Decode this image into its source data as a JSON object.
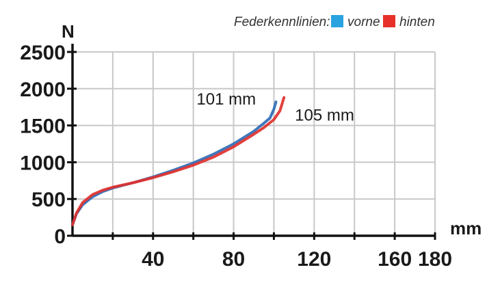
{
  "chart_data": {
    "type": "line",
    "title": "",
    "legend_title": "Federkennlinien:",
    "legend_position": "top-right",
    "xlabel": "mm",
    "ylabel": "N",
    "xlim": [
      0,
      180
    ],
    "ylim": [
      0,
      2500
    ],
    "grid": true,
    "x_ticks": [
      0,
      20,
      40,
      60,
      80,
      100,
      120,
      140,
      160,
      180
    ],
    "x_tick_labels": [
      "40",
      "80",
      "120",
      "160",
      "180"
    ],
    "x_tick_label_values": [
      40,
      80,
      120,
      160,
      180
    ],
    "y_ticks": [
      0,
      500,
      1000,
      1500,
      2000,
      2500
    ],
    "y_tick_labels": [
      "0",
      "500",
      "1000",
      "1500",
      "2000",
      "2500"
    ],
    "series": [
      {
        "name": "vorne",
        "color": "#2f6db5",
        "legend_color": "#29a3e0",
        "x": [
          0,
          2,
          5,
          10,
          15,
          20,
          30,
          40,
          50,
          60,
          70,
          80,
          90,
          95,
          98,
          100,
          101
        ],
        "y": [
          150,
          300,
          420,
          530,
          600,
          650,
          720,
          800,
          890,
          990,
          1110,
          1250,
          1420,
          1530,
          1600,
          1720,
          1820
        ]
      },
      {
        "name": "hinten",
        "color": "#e0302d",
        "legend_color": "#e8302a",
        "x": [
          0,
          2,
          5,
          10,
          15,
          20,
          30,
          40,
          50,
          60,
          70,
          80,
          90,
          95,
          100,
          103,
          105
        ],
        "y": [
          150,
          310,
          450,
          560,
          620,
          660,
          720,
          790,
          870,
          960,
          1070,
          1210,
          1380,
          1470,
          1580,
          1700,
          1880
        ]
      }
    ],
    "annotations": [
      {
        "text": "101 mm",
        "x": 101,
        "y": 1820
      },
      {
        "text": "105 mm",
        "x": 105,
        "y": 1880
      }
    ]
  }
}
